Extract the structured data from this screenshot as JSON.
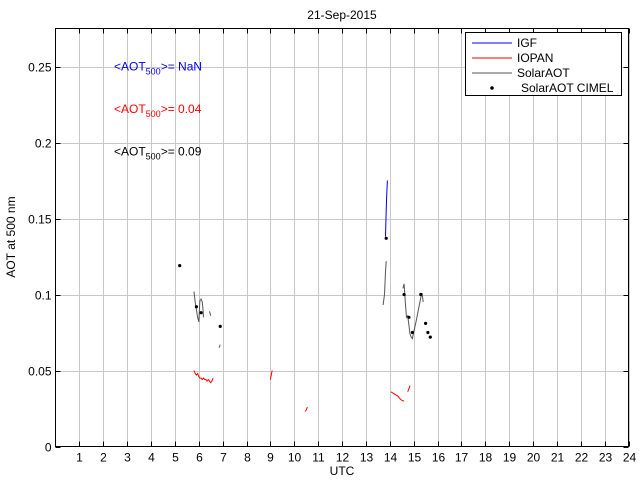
{
  "chart_data": {
    "type": "line",
    "title": "21-Sep-2015",
    "xlabel": "UTC",
    "ylabel": "AOT at 500 nm",
    "xlim": [
      0,
      24
    ],
    "ylim": [
      0,
      0.275
    ],
    "grid": true,
    "legend_position": "top-right",
    "x_ticks": [
      1,
      2,
      3,
      4,
      5,
      6,
      7,
      8,
      9,
      10,
      11,
      12,
      13,
      14,
      15,
      16,
      17,
      18,
      19,
      20,
      21,
      22,
      23,
      24
    ],
    "x_tick_labels": [
      "1",
      "2",
      "3",
      "4",
      "5",
      "6",
      "7",
      "8",
      "9",
      "10",
      "11",
      "12",
      "13",
      "14",
      "15",
      "16",
      "17",
      "18",
      "19",
      "20",
      "21",
      "22",
      "23",
      "24"
    ],
    "y_ticks": [
      0,
      0.05,
      0.1,
      0.15,
      0.2,
      0.25
    ],
    "y_tick_labels": [
      "0",
      "0.05",
      "0.1",
      "0.15",
      "0.2",
      "0.25"
    ],
    "annotations": [
      {
        "prefix": "<AOT",
        "sub": "500",
        "suffix": ">=  NaN",
        "color": "#0000ff",
        "x": 2.45,
        "y": 0.25
      },
      {
        "prefix": "<AOT",
        "sub": "500",
        "suffix": ">= 0.04",
        "color": "#ff0000",
        "x": 2.45,
        "y": 0.222
      },
      {
        "prefix": "<AOT",
        "sub": "500",
        "suffix": ">= 0.09",
        "color": "#000000",
        "x": 2.45,
        "y": 0.194
      }
    ],
    "series": [
      {
        "name": "IGF",
        "kind": "line",
        "color": "#0000ff",
        "segments": [
          [
            [
              13.82,
              0.138
            ],
            [
              13.84,
              0.148
            ],
            [
              13.86,
              0.16
            ],
            [
              13.88,
              0.168
            ],
            [
              13.9,
              0.175
            ]
          ]
        ]
      },
      {
        "name": "IOPAN",
        "kind": "line",
        "color": "#ff0000",
        "segments": [
          [
            [
              5.8,
              0.05
            ],
            [
              5.85,
              0.048
            ],
            [
              5.9,
              0.047
            ],
            [
              5.95,
              0.048
            ],
            [
              6.0,
              0.046
            ],
            [
              6.05,
              0.045
            ],
            [
              6.1,
              0.045
            ],
            [
              6.15,
              0.044
            ],
            [
              6.2,
              0.045
            ],
            [
              6.25,
              0.044
            ],
            [
              6.3,
              0.044
            ],
            [
              6.35,
              0.043
            ],
            [
              6.4,
              0.044
            ],
            [
              6.45,
              0.043
            ],
            [
              6.5,
              0.042
            ],
            [
              6.55,
              0.043
            ],
            [
              6.6,
              0.045
            ]
          ],
          [
            [
              9.0,
              0.044
            ],
            [
              9.02,
              0.046
            ],
            [
              9.04,
              0.047
            ],
            [
              9.06,
              0.049
            ],
            [
              9.08,
              0.05
            ]
          ],
          [
            [
              10.45,
              0.023
            ],
            [
              10.5,
              0.024
            ],
            [
              10.55,
              0.026
            ]
          ],
          [
            [
              14.05,
              0.036
            ],
            [
              14.15,
              0.035
            ],
            [
              14.25,
              0.034
            ],
            [
              14.35,
              0.033
            ],
            [
              14.45,
              0.031
            ],
            [
              14.55,
              0.03
            ],
            [
              14.6,
              0.03
            ]
          ],
          [
            [
              14.75,
              0.036
            ],
            [
              14.8,
              0.038
            ],
            [
              14.85,
              0.04
            ]
          ]
        ]
      },
      {
        "name": "SolarAOT",
        "kind": "line",
        "color": "#555555",
        "segments": [
          [
            [
              5.8,
              0.102
            ],
            [
              5.85,
              0.095
            ],
            [
              5.9,
              0.09
            ],
            [
              5.95,
              0.085
            ],
            [
              6.0,
              0.082
            ],
            [
              6.05,
              0.096
            ],
            [
              6.1,
              0.097
            ],
            [
              6.15,
              0.095
            ],
            [
              6.18,
              0.09
            ],
            [
              6.2,
              0.085
            ]
          ],
          [
            [
              6.45,
              0.089
            ],
            [
              6.5,
              0.086
            ]
          ],
          [
            [
              6.85,
              0.065
            ],
            [
              6.9,
              0.067
            ]
          ],
          [
            [
              13.72,
              0.093
            ],
            [
              13.78,
              0.1
            ],
            [
              13.82,
              0.115
            ],
            [
              13.85,
              0.122
            ]
          ],
          [
            [
              14.55,
              0.104
            ],
            [
              14.6,
              0.107
            ],
            [
              14.65,
              0.095
            ],
            [
              14.7,
              0.085
            ],
            [
              14.75,
              0.086
            ],
            [
              14.8,
              0.08
            ],
            [
              14.85,
              0.074
            ],
            [
              14.9,
              0.072
            ],
            [
              14.95,
              0.071
            ],
            [
              15.0,
              0.075
            ],
            [
              15.1,
              0.082
            ],
            [
              15.2,
              0.09
            ],
            [
              15.3,
              0.098
            ],
            [
              15.35,
              0.101
            ],
            [
              15.4,
              0.095
            ]
          ]
        ]
      },
      {
        "name": "SolarAOT CIMEL",
        "kind": "points",
        "color": "#000000",
        "points": [
          [
            5.2,
            0.119
          ],
          [
            5.9,
            0.092
          ],
          [
            6.1,
            0.088
          ],
          [
            6.9,
            0.079
          ],
          [
            13.85,
            0.137
          ],
          [
            14.6,
            0.1
          ],
          [
            14.8,
            0.085
          ],
          [
            14.95,
            0.075
          ],
          [
            15.3,
            0.1
          ],
          [
            15.5,
            0.081
          ],
          [
            15.6,
            0.075
          ],
          [
            15.7,
            0.072
          ]
        ]
      }
    ]
  }
}
